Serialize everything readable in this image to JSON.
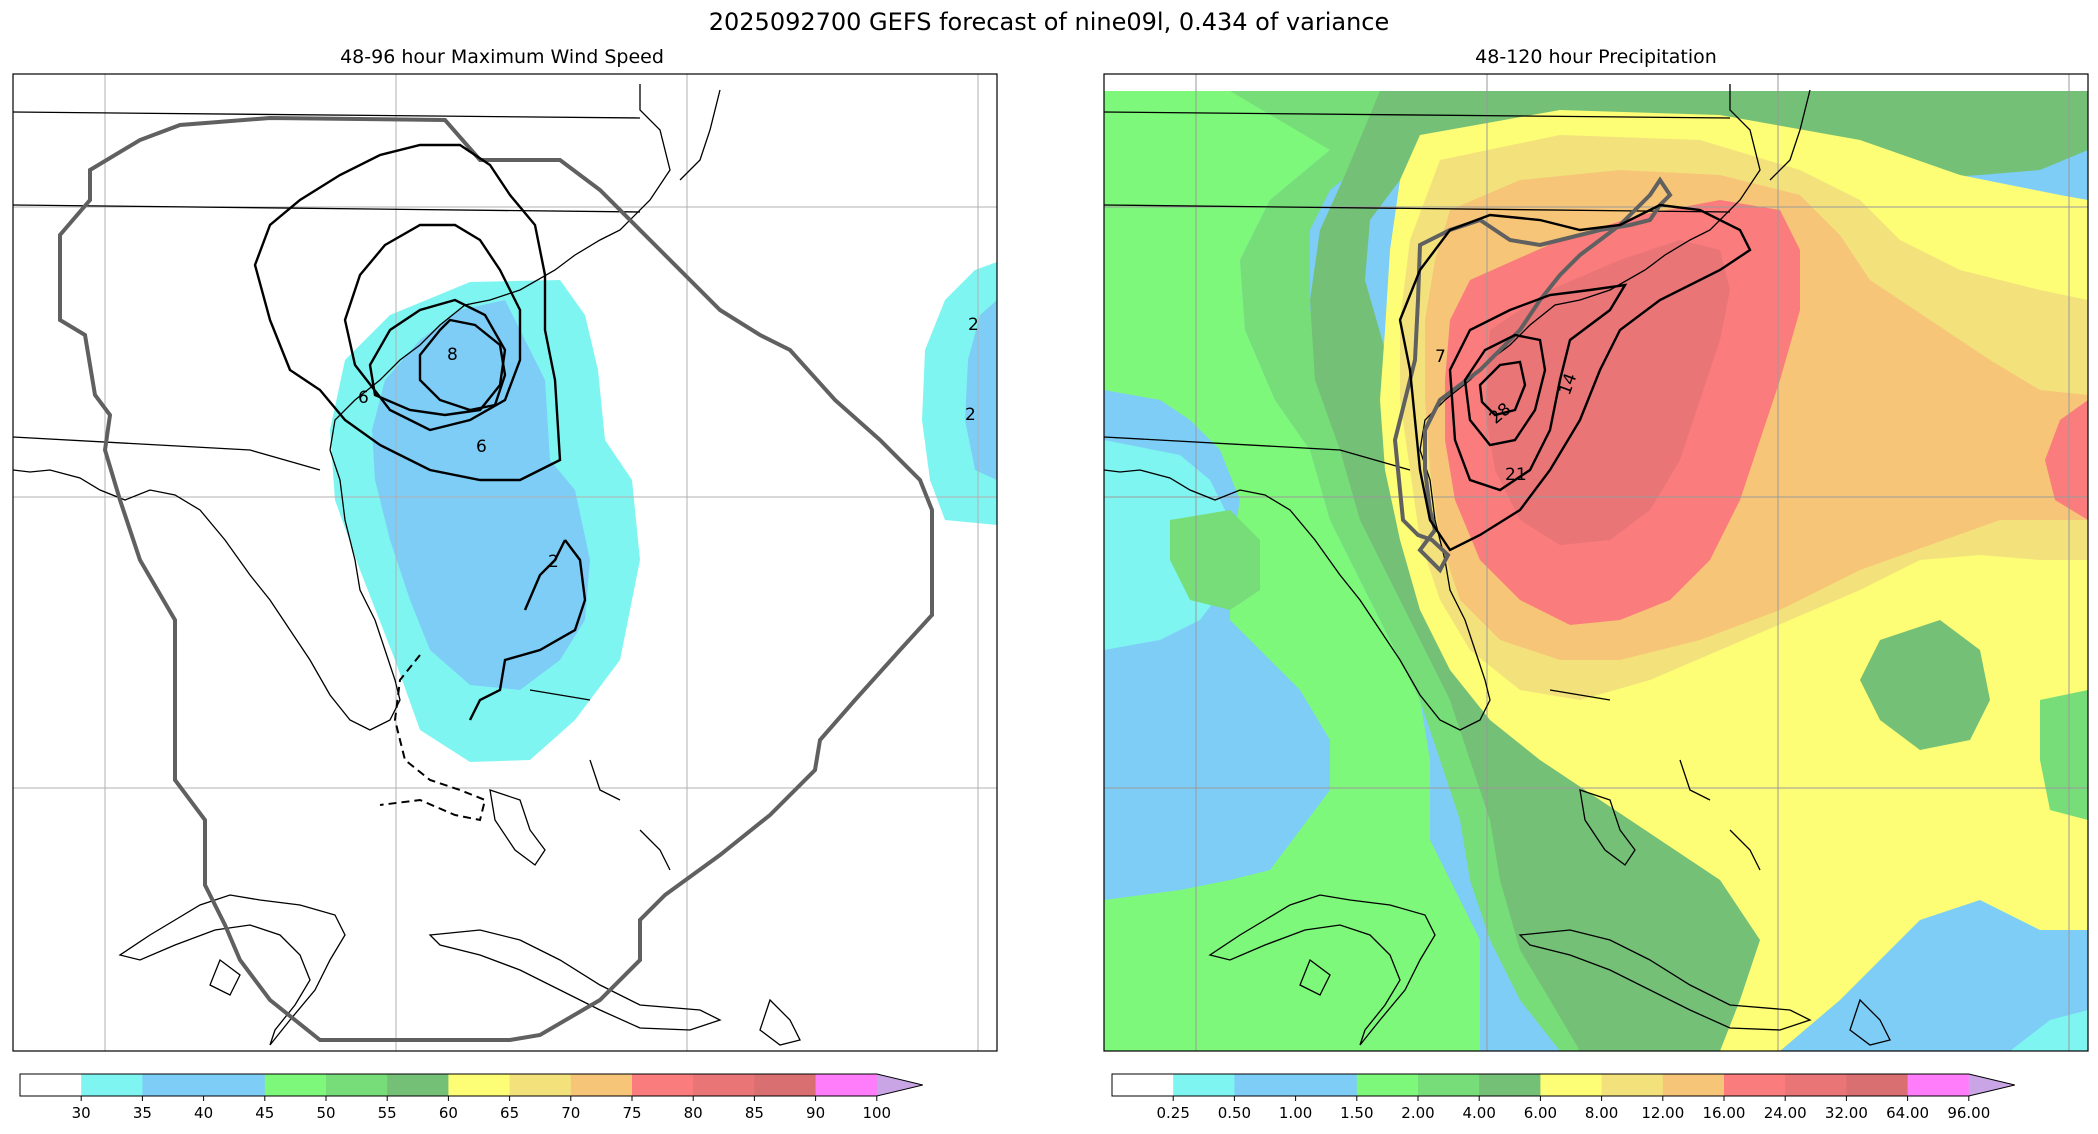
{
  "figure": {
    "suptitle": "2025092700 GEFS forecast of nine09l, 0.434 of variance"
  },
  "chart_data": [
    {
      "type": "contour-map",
      "title": "48-96 hour Maximum Wind Speed",
      "region": "Southeastern United States, western Atlantic, Bahamas, Cuba",
      "colorbar": {
        "ticks": [
          "30",
          "35",
          "40",
          "45",
          "50",
          "55",
          "60",
          "65",
          "70",
          "75",
          "80",
          "85",
          "90",
          "100"
        ],
        "colors": [
          "#ffffff",
          "#7ff5f2",
          "#7dcdf7",
          "#7dcdf7",
          "#7ef87b",
          "#76dd79",
          "#74c076",
          "#fdfd76",
          "#f3e27c",
          "#f7c578",
          "#fa7c7c",
          "#e97576",
          "#d96f70",
          "#ff7cfa",
          "#caa5e6"
        ],
        "extend": "max"
      },
      "contour_labels": [
        "6",
        "6",
        "8",
        "2",
        "2",
        "2"
      ]
    },
    {
      "type": "contour-map",
      "title": "48-120 hour Precipitation",
      "region": "Southeastern United States, western Atlantic, Bahamas, Cuba",
      "colorbar": {
        "ticks": [
          "0.25",
          "0.50",
          "1.00",
          "1.50",
          "2.00",
          "4.00",
          "6.00",
          "8.00",
          "12.00",
          "16.00",
          "24.00",
          "32.00",
          "64.00",
          "96.00"
        ],
        "colors": [
          "#ffffff",
          "#7ff5f2",
          "#7dcdf7",
          "#7dcdf7",
          "#7ef87b",
          "#76dd79",
          "#74c076",
          "#fdfd76",
          "#f3e27c",
          "#f7c578",
          "#fa7c7c",
          "#e97576",
          "#d96f70",
          "#ff7cfa",
          "#caa5e6"
        ],
        "extend": "max"
      },
      "contour_labels": [
        "14",
        "21",
        "28",
        "7"
      ]
    }
  ]
}
